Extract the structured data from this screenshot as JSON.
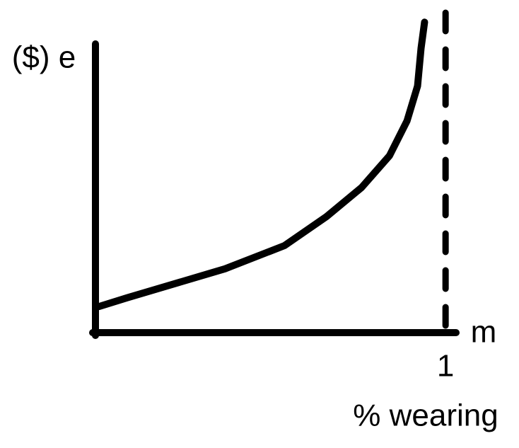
{
  "chart_data": {
    "type": "line",
    "y_label": "($) e",
    "x_label_end": "m",
    "x_label": "% wearing",
    "x": [
      0.01,
      0.09,
      0.23,
      0.37,
      0.54,
      0.66,
      0.76,
      0.84,
      0.89,
      0.92,
      0.93,
      0.94
    ],
    "values": [
      0.09,
      0.12,
      0.17,
      0.22,
      0.3,
      0.4,
      0.5,
      0.61,
      0.73,
      0.85,
      0.98,
      1.07
    ],
    "color": "#000000",
    "xlim": [
      0,
      1.03
    ],
    "ylim": [
      0,
      1.1
    ],
    "xticks": [
      1
    ],
    "dashed_asymptote": true
  }
}
